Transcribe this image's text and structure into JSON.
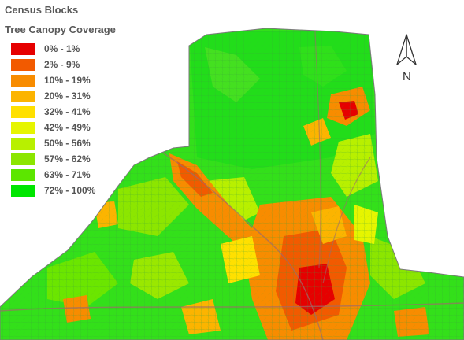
{
  "legend": {
    "title": "Census Blocks",
    "subtitle": "Tree Canopy Coverage",
    "items": [
      {
        "label": "0% - 1%",
        "color": "#e60000"
      },
      {
        "label": "2% - 9%",
        "color": "#f25a00"
      },
      {
        "label": "10% - 19%",
        "color": "#f88c00"
      },
      {
        "label": "20% - 31%",
        "color": "#fcb400"
      },
      {
        "label": "32% - 41%",
        "color": "#ffe000"
      },
      {
        "label": "42% - 49%",
        "color": "#e6f500"
      },
      {
        "label": "50% - 56%",
        "color": "#b8f000"
      },
      {
        "label": "57% - 62%",
        "color": "#8ce600"
      },
      {
        "label": "63% - 71%",
        "color": "#5ce600"
      },
      {
        "label": "72% - 100%",
        "color": "#00e600"
      }
    ]
  },
  "north_arrow": {
    "label": "N",
    "icon": "north-arrow-icon"
  }
}
